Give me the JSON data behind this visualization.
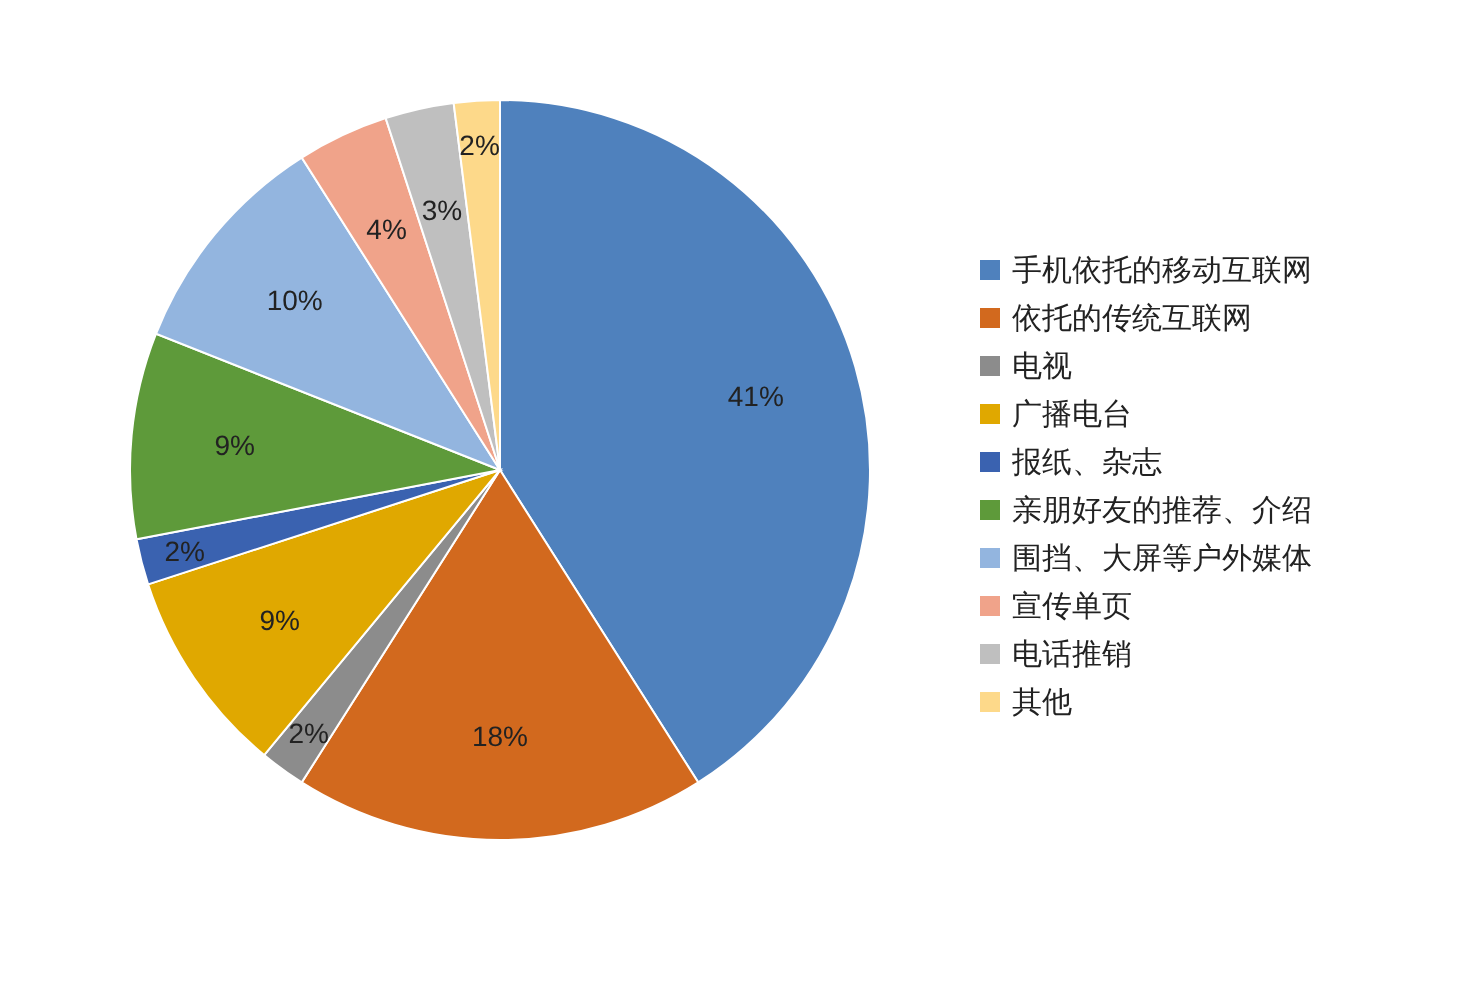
{
  "chart_data": {
    "type": "pie",
    "categories": [
      "手机依托的移动互联网",
      "依托的传统互联网",
      "电视",
      "广播电台",
      "报纸、杂志",
      "亲朋好友的推荐、介绍",
      "围挡、大屏等户外媒体",
      "宣传单页",
      "电话推销",
      "其他"
    ],
    "values": [
      41,
      18,
      2,
      9,
      2,
      9,
      10,
      4,
      3,
      2
    ],
    "colors": [
      "#4f81bd",
      "#d2691e",
      "#8c8c8c",
      "#e0a800",
      "#3a62b0",
      "#5e9a3a",
      "#93b5df",
      "#f0a38a",
      "#bfbfbf",
      "#fdd98a"
    ],
    "value_labels": [
      "41%",
      "18%",
      "2%",
      "9%",
      "2%",
      "9%",
      "10%",
      "4%",
      "3%",
      "2%"
    ],
    "legend": "right"
  }
}
